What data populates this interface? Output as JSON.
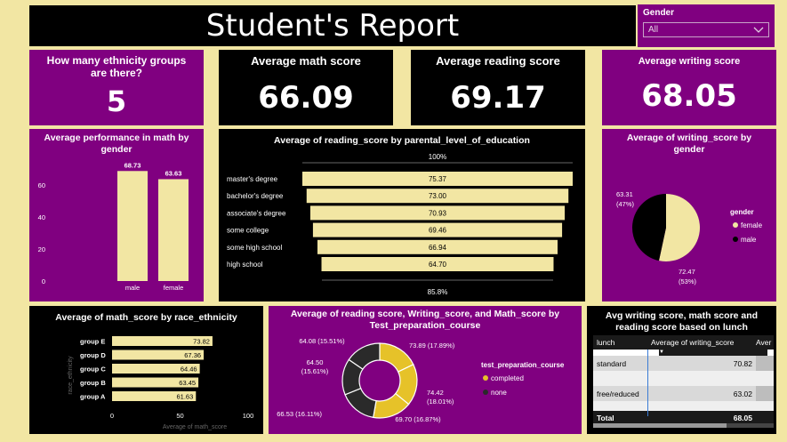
{
  "title": "Student's Report",
  "slicer": {
    "label": "Gender",
    "value": "All"
  },
  "cards": {
    "ethnicity": {
      "title": "How many ethnicity groups are there?",
      "value": "5"
    },
    "math": {
      "title": "Average math score",
      "value": "66.09"
    },
    "reading": {
      "title": "Average reading score",
      "value": "69.17"
    },
    "writing": {
      "title": "Average writing score",
      "value": "68.05"
    }
  },
  "math_gender": {
    "title": "Average performance in math by gender",
    "chart_data": {
      "type": "bar",
      "categories": [
        "male",
        "female"
      ],
      "values": [
        68.73,
        63.63
      ],
      "value_labels": [
        "68.73",
        "63.63"
      ],
      "yticks": [
        "0",
        "20",
        "40",
        "60"
      ],
      "ylim": [
        0,
        75
      ],
      "bar_color": "#f2e6a3"
    }
  },
  "funnel": {
    "title": "Average of reading_score by parental_level_of_education",
    "top_label": "100%",
    "bottom_label": "85.8%",
    "chart_data": {
      "type": "bar",
      "categories": [
        "master's degree",
        "bachelor's degree",
        "associate's degree",
        "some college",
        "some high school",
        "high school"
      ],
      "values": [
        75.37,
        73.0,
        70.93,
        69.46,
        66.94,
        64.7
      ],
      "value_labels": [
        "75.37",
        "73.00",
        "70.93",
        "69.46",
        "66.94",
        "64.70"
      ]
    }
  },
  "writing_gender": {
    "title": "Average of writing_score by gender",
    "legend_title": "gender",
    "chart_data": {
      "type": "pie",
      "categories": [
        "female",
        "male"
      ],
      "values": [
        72.47,
        63.31
      ],
      "percent_labels": [
        "(53%)",
        "(47%)"
      ],
      "value_labels": [
        "72.47",
        "63.31"
      ],
      "colors": [
        "#f2e6a3",
        "#000000"
      ]
    }
  },
  "race": {
    "title": "Average of math_score by race_ethnicity",
    "ylabel": "race_ethnicity",
    "xlabel": "Average of math_score",
    "chart_data": {
      "type": "bar",
      "categories": [
        "group E",
        "group D",
        "group C",
        "group B",
        "group A"
      ],
      "values": [
        73.82,
        67.36,
        64.46,
        63.45,
        61.63
      ],
      "value_labels": [
        "73.82",
        "67.36",
        "64.46",
        "63.45",
        "61.63"
      ],
      "xticks": [
        "0",
        "50",
        "100"
      ],
      "xlim": [
        0,
        100
      ]
    }
  },
  "donut": {
    "title": "Average of reading score, Writing_score, and Math_score by Test_preparation_course",
    "legend_title": "test_preparation_course",
    "legend": [
      "completed",
      "none"
    ],
    "chart_data": {
      "type": "pie",
      "slices": [
        {
          "group": "completed",
          "value": 73.89,
          "label": "73.89 (17.89%)"
        },
        {
          "group": "completed",
          "value": 74.42,
          "label": "74.42 (18.01%)"
        },
        {
          "group": "completed",
          "value": 69.7,
          "label": "69.70 (16.87%)"
        },
        {
          "group": "none",
          "value": 66.53,
          "label": "66.53 (16.11%)"
        },
        {
          "group": "none",
          "value": 64.5,
          "label": "64.50 (15.61%)"
        },
        {
          "group": "none",
          "value": 64.08,
          "label": "64.08 (15.51%)"
        }
      ],
      "colors": {
        "completed": "#e6c229",
        "none": "#2a2a2a"
      }
    }
  },
  "lunch": {
    "title": "Avg writing score, math score and reading score based on lunch",
    "columns": [
      "lunch",
      "Average of writing_score",
      "Aver"
    ],
    "rows": [
      {
        "lunch": "standard",
        "writing": "70.82"
      },
      {
        "lunch": "free/reduced",
        "writing": "63.02"
      }
    ],
    "total": {
      "label": "Total",
      "writing": "68.05"
    }
  }
}
